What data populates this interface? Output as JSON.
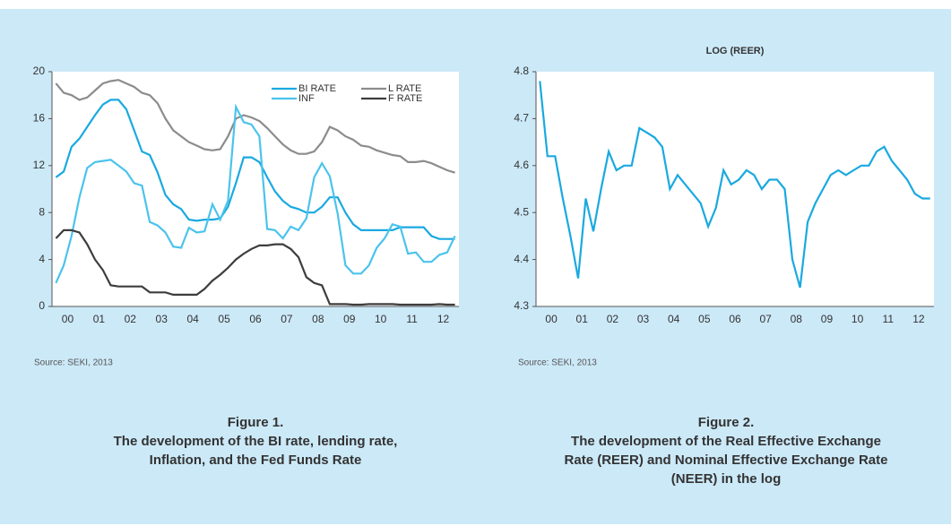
{
  "chart_data": [
    {
      "type": "line",
      "categories": [
        null,
        null,
        "00",
        null,
        null,
        null,
        "01",
        null,
        null,
        null,
        "02",
        null,
        null,
        null,
        "03",
        null,
        null,
        null,
        "04",
        null,
        null,
        null,
        "05",
        null,
        null,
        null,
        "06",
        null,
        null,
        null,
        "07",
        null,
        null,
        null,
        "08",
        null,
        null,
        null,
        "09",
        null,
        null,
        null,
        "10",
        null,
        null,
        null,
        "11",
        null,
        null,
        null,
        "12",
        null
      ],
      "ylim": [
        0,
        20
      ],
      "yticks": [
        0,
        4,
        8,
        12,
        16,
        20
      ],
      "series": [
        {
          "name": "BI RATE",
          "color": "#1aa9e0",
          "values": [
            11,
            11.5,
            13.6,
            14.3,
            15.3,
            16.3,
            17.2,
            17.6,
            17.6,
            16.8,
            15,
            13.2,
            12.9,
            11.4,
            9.5,
            8.7,
            8.3,
            7.4,
            7.3,
            7.4,
            7.4,
            7.5,
            8.5,
            10.5,
            12.7,
            12.7,
            12.3,
            11,
            9.8,
            9,
            8.5,
            8.3,
            8,
            8,
            8.5,
            9.3,
            9.3,
            8,
            7,
            6.5,
            6.5,
            6.5,
            6.5,
            6.5,
            6.75,
            6.75,
            6.75,
            6.75,
            6,
            5.75,
            5.75,
            5.75
          ]
        },
        {
          "name": "L RATE",
          "color": "#8c8c8c",
          "values": [
            19,
            18.2,
            18,
            17.6,
            17.8,
            18.4,
            19,
            19.2,
            19.3,
            19,
            18.7,
            18.2,
            18,
            17.3,
            16,
            15,
            14.5,
            14,
            13.7,
            13.4,
            13.3,
            13.4,
            14.5,
            16,
            16.3,
            16.1,
            15.8,
            15.2,
            14.5,
            13.8,
            13.3,
            13,
            13,
            13.2,
            14,
            15.3,
            15,
            14.5,
            14.2,
            13.7,
            13.6,
            13.3,
            13.1,
            12.9,
            12.8,
            12.3,
            12.3,
            12.4,
            12.2,
            11.9,
            11.6,
            11.4
          ]
        },
        {
          "name": "INF",
          "color": "#4cc3ec",
          "values": [
            2,
            3.5,
            6,
            9.3,
            11.8,
            12.3,
            12.4,
            12.5,
            12,
            11.5,
            10.5,
            10.3,
            7.2,
            6.9,
            6.3,
            5.1,
            5,
            6.7,
            6.3,
            6.4,
            8.7,
            7.4,
            9,
            17,
            15.7,
            15.5,
            14.5,
            6.6,
            6.5,
            5.8,
            6.8,
            6.5,
            7.5,
            11,
            12.2,
            11.1,
            7.9,
            3.5,
            2.8,
            2.8,
            3.5,
            5,
            5.8,
            7,
            6.8,
            4.5,
            4.6,
            3.8,
            3.8,
            4.4,
            4.6,
            6
          ]
        },
        {
          "name": "F RATE",
          "color": "#3d3d3d",
          "values": [
            5.8,
            6.5,
            6.5,
            6.3,
            5.3,
            4,
            3.1,
            1.8,
            1.7,
            1.7,
            1.7,
            1.7,
            1.2,
            1.2,
            1.2,
            1,
            1,
            1,
            1,
            1.5,
            2.2,
            2.7,
            3.3,
            4,
            4.5,
            4.9,
            5.2,
            5.2,
            5.3,
            5.3,
            4.9,
            4.2,
            2.5,
            2,
            1.8,
            0.2,
            0.2,
            0.2,
            0.15,
            0.15,
            0.2,
            0.2,
            0.2,
            0.2,
            0.15,
            0.15,
            0.15,
            0.15,
            0.15,
            0.2,
            0.15,
            0.15
          ]
        }
      ],
      "source": "Source: SEKI, 2013",
      "caption": [
        "Figure 1.",
        "The development of the BI rate, lending rate,",
        "Inflation, and the Fed Funds Rate"
      ]
    },
    {
      "type": "line",
      "title": "LOG (REER)",
      "categories": [
        null,
        null,
        "00",
        null,
        null,
        null,
        "01",
        null,
        null,
        null,
        "02",
        null,
        null,
        null,
        "03",
        null,
        null,
        null,
        "04",
        null,
        null,
        null,
        "05",
        null,
        null,
        null,
        "06",
        null,
        null,
        null,
        "07",
        null,
        null,
        null,
        "08",
        null,
        null,
        null,
        "09",
        null,
        null,
        null,
        "10",
        null,
        null,
        null,
        "11",
        null,
        null,
        null,
        "12",
        null
      ],
      "ylim": [
        4.3,
        4.8
      ],
      "yticks": [
        4.3,
        4.4,
        4.5,
        4.6,
        4.7,
        4.8
      ],
      "series": [
        {
          "name": "LOG (REER)",
          "color": "#1aa9e0",
          "values": [
            4.78,
            4.62,
            4.62,
            4.53,
            4.45,
            4.36,
            4.53,
            4.46,
            4.55,
            4.63,
            4.59,
            4.6,
            4.6,
            4.68,
            4.67,
            4.66,
            4.64,
            4.55,
            4.58,
            4.56,
            4.54,
            4.52,
            4.47,
            4.51,
            4.59,
            4.56,
            4.57,
            4.59,
            4.58,
            4.55,
            4.57,
            4.57,
            4.55,
            4.4,
            4.34,
            4.48,
            4.52,
            4.55,
            4.58,
            4.59,
            4.58,
            4.59,
            4.6,
            4.6,
            4.63,
            4.64,
            4.61,
            4.59,
            4.57,
            4.54,
            4.53,
            4.53
          ]
        }
      ],
      "source": "Source: SEKI, 2013",
      "caption": [
        "Figure 2.",
        "The development of the Real Effective Exchange",
        "Rate (REER) and Nominal Effective Exchange Rate",
        "(NEER) in the log"
      ]
    }
  ]
}
